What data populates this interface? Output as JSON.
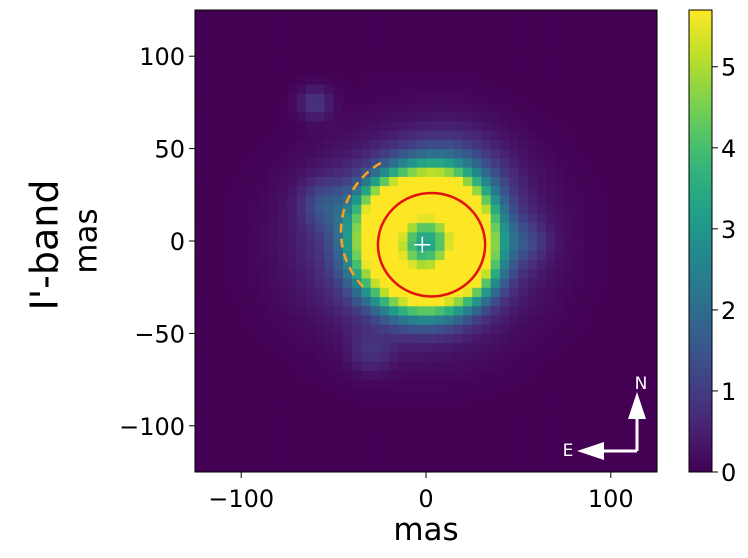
{
  "chart_data": {
    "type": "heatmap",
    "band_label": "I'-band",
    "xlabel": "mas",
    "ylabel": "mas",
    "xlim": [
      -125,
      125
    ],
    "ylim": [
      -125,
      125
    ],
    "x_ticks": [
      -100,
      0,
      100
    ],
    "x_tick_labels": [
      "−100",
      "0",
      "100"
    ],
    "y_ticks": [
      -100,
      -50,
      0,
      50,
      100
    ],
    "y_tick_labels": [
      "−100",
      "−50",
      "0",
      "50",
      "100"
    ],
    "colorbar": {
      "colormap": "viridis",
      "range": [
        0,
        5.7
      ],
      "ticks": [
        0,
        1,
        2,
        3,
        4,
        5
      ],
      "tick_labels": [
        "0",
        "1",
        "2",
        "3",
        "4",
        "5"
      ]
    },
    "image_components": [
      {
        "shape": "ring",
        "center": [
          0,
          0
        ],
        "radius": 26,
        "width": 11,
        "peak": 5.4
      },
      {
        "shape": "blob",
        "center": [
          -20,
          18
        ],
        "sigma": 9,
        "peak": 1.6
      },
      {
        "shape": "blob",
        "center": [
          22,
          -15
        ],
        "sigma": 11,
        "peak": 1.2
      },
      {
        "shape": "blob",
        "center": [
          15,
          30
        ],
        "sigma": 18,
        "peak": 1.3
      },
      {
        "shape": "halo",
        "center": [
          -5,
          0
        ],
        "sigma_x": 35,
        "sigma_y": 30,
        "peak": 2.4
      },
      {
        "shape": "blob",
        "center": [
          -55,
          20
        ],
        "sigma": 9,
        "peak": 0.9
      },
      {
        "shape": "blob",
        "center": [
          -60,
          75
        ],
        "sigma": 6,
        "peak": 0.9
      },
      {
        "shape": "blob",
        "center": [
          -30,
          -60
        ],
        "sigma": 8,
        "peak": 0.6
      },
      {
        "shape": "blob",
        "center": [
          55,
          0
        ],
        "sigma": 8,
        "peak": 0.7
      }
    ],
    "annotations": {
      "ellipse": {
        "center": [
          3,
          -2
        ],
        "rx": 29,
        "ry": 28,
        "color": "#e3120b"
      },
      "arc": {
        "center": [
          -3,
          5
        ],
        "radius": 43,
        "start_deg": 120,
        "end_deg": 228,
        "color": "#ff9f1c",
        "style": "dashed"
      },
      "center_marker": {
        "x": -2,
        "y": -2,
        "symbol": "+",
        "color": "#ffffff"
      },
      "compass": {
        "north": "N",
        "east": "E",
        "color": "#ffffff"
      }
    }
  }
}
